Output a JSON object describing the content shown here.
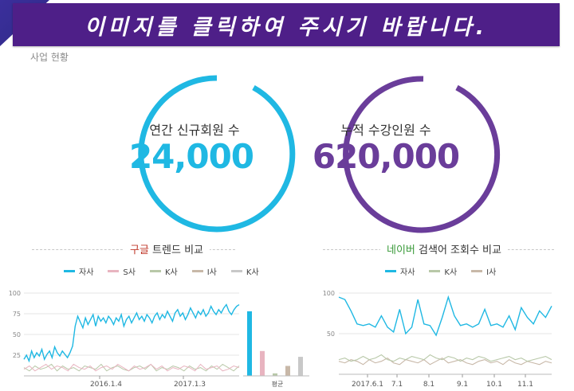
{
  "banner": {
    "text": "이미지를 클릭하여 주시기 바랍니다."
  },
  "section": {
    "title": "사업 현황"
  },
  "stats": [
    {
      "label": "연간 신규회원 수",
      "value": "24,000",
      "color": "#1fb8e3"
    },
    {
      "label": "누적 수강인원 수",
      "value": "620,000",
      "color": "#6a3d9a"
    }
  ],
  "google_chart": {
    "title_brand": "구글",
    "title_rest": " 트렌드 비교",
    "legend": [
      "자사",
      "S사",
      "K사",
      "I사",
      "K사"
    ],
    "legend_colors": [
      "#1fb8e3",
      "#e8b4c0",
      "#b8c8a8",
      "#c8b8a8",
      "#c8c8c8"
    ],
    "y_ticks": [
      "100",
      "75",
      "50",
      "25"
    ],
    "x_ticks": [
      "2016.1.4",
      "2017.1.3"
    ],
    "avg_label": "평균",
    "avg_values": [
      78,
      30,
      3,
      12,
      23
    ]
  },
  "naver_chart": {
    "title_brand": "네이버",
    "title_rest": " 검색어 조회수 비교",
    "legend": [
      "자사",
      "K사",
      "I사"
    ],
    "legend_colors": [
      "#1fb8e3",
      "#b8c8a8",
      "#c8b8a8"
    ],
    "y_ticks": [
      "100",
      "50"
    ],
    "x_ticks": [
      "2017.6.1",
      "7.1",
      "8.1",
      "9.1",
      "10.1",
      "11.1"
    ]
  },
  "chart_data": [
    {
      "type": "line",
      "title": "구글 트렌드 비교",
      "ylim": [
        0,
        100
      ],
      "x_ticks": [
        "2016.1.4",
        "2017.1.3"
      ],
      "series": [
        {
          "name": "자사",
          "values": [
            20,
            25,
            18,
            30,
            22,
            28,
            24,
            32,
            20,
            26,
            30,
            22,
            35,
            28,
            24,
            30,
            26,
            22,
            28,
            36,
            60,
            72,
            65,
            58,
            70,
            62,
            68,
            74,
            60,
            72,
            66,
            70,
            64,
            72,
            68,
            62,
            70,
            66,
            74,
            60,
            68,
            72,
            64,
            70,
            76,
            68,
            72,
            66,
            74,
            70,
            64,
            72,
            76,
            68,
            74,
            70,
            78,
            72,
            66,
            76,
            80,
            72,
            76,
            68,
            74,
            82,
            76,
            70,
            78,
            74,
            80,
            72,
            76,
            84,
            78,
            74,
            80,
            76,
            82,
            86,
            78,
            74,
            80,
            84,
            86
          ]
        },
        {
          "name": "S사",
          "values": [
            8,
            12,
            6,
            10,
            14,
            8,
            12,
            10,
            6,
            14,
            10,
            8,
            12,
            6,
            10,
            12,
            8,
            14,
            10,
            6,
            12,
            8,
            10,
            14,
            8,
            12,
            6,
            10,
            8,
            12,
            10,
            6,
            14,
            8,
            10,
            12,
            6,
            8,
            12,
            10
          ]
        },
        {
          "name": "K사",
          "values": [
            10,
            6,
            12,
            8,
            10,
            14,
            6,
            12,
            8,
            10,
            6,
            12,
            10,
            8,
            14,
            6,
            10,
            12,
            8,
            6,
            10,
            12,
            8,
            14,
            6,
            10,
            8,
            12,
            10,
            6,
            12,
            8,
            10,
            6,
            12,
            8,
            14,
            10,
            6,
            12
          ]
        }
      ]
    },
    {
      "type": "bar",
      "title": "평균",
      "categories": [
        "자사",
        "S사",
        "K사",
        "I사",
        "K사"
      ],
      "values": [
        78,
        30,
        3,
        12,
        23
      ],
      "ylim": [
        0,
        100
      ]
    },
    {
      "type": "line",
      "title": "네이버 검색어 조회수 비교",
      "ylim": [
        0,
        100
      ],
      "x_ticks": [
        "2017.6.1",
        "7.1",
        "8.1",
        "9.1",
        "10.1",
        "11.1"
      ],
      "series": [
        {
          "name": "자사",
          "values": [
            95,
            92,
            78,
            62,
            60,
            62,
            58,
            72,
            58,
            52,
            80,
            50,
            58,
            92,
            62,
            60,
            48,
            70,
            95,
            72,
            60,
            62,
            58,
            62,
            80,
            60,
            62,
            58,
            72,
            55,
            82,
            70,
            62,
            78,
            70,
            84
          ]
        },
        {
          "name": "K사",
          "values": [
            18,
            20,
            16,
            18,
            22,
            18,
            20,
            24,
            18,
            16,
            20,
            18,
            22,
            20,
            18,
            24,
            20,
            18,
            22,
            20,
            16,
            20,
            18,
            22,
            20,
            16,
            18,
            20,
            22,
            18,
            20,
            16,
            18,
            20,
            22,
            18
          ]
        },
        {
          "name": "I사",
          "values": [
            16,
            14,
            18,
            16,
            12,
            18,
            14,
            16,
            20,
            14,
            12,
            18,
            16,
            14,
            18,
            12,
            16,
            20,
            14,
            16,
            18,
            14,
            12,
            16,
            18,
            14,
            16,
            12,
            18,
            14,
            12,
            16,
            14,
            12,
            16,
            14
          ]
        }
      ]
    }
  ]
}
